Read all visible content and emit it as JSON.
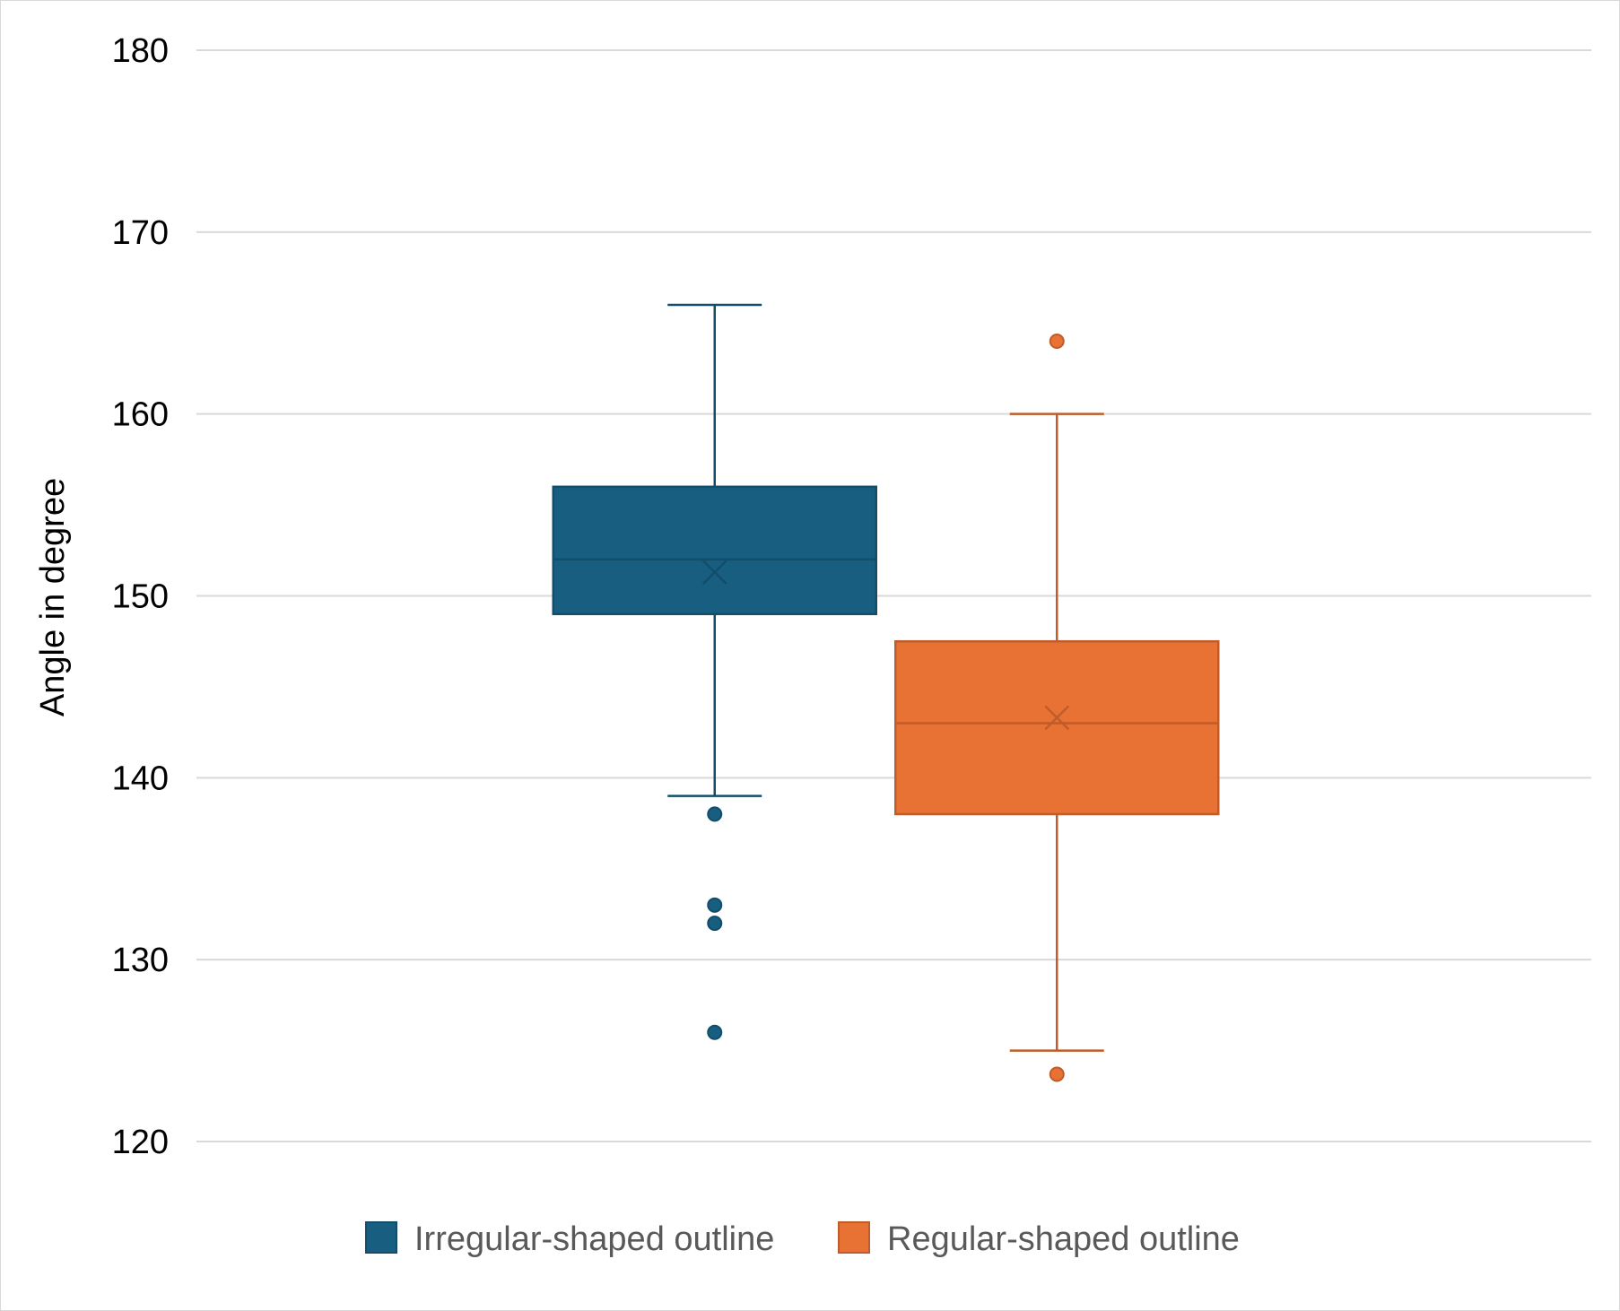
{
  "chart_data": {
    "type": "box",
    "ylabel": "Angle in degree",
    "ylim": [
      120,
      180
    ],
    "yticks": [
      120,
      130,
      140,
      150,
      160,
      170,
      180
    ],
    "grid": true,
    "legend_position": "bottom",
    "series": [
      {
        "name": "Irregular-shaped outline",
        "color": "#175e80",
        "whisker_low": 139,
        "q1": 149,
        "median": 152,
        "mean": 151.3,
        "q3": 156,
        "whisker_high": 166,
        "outliers": [
          138,
          133,
          132,
          126
        ]
      },
      {
        "name": "Regular-shaped outline",
        "color": "#e87234",
        "whisker_low": 125,
        "q1": 138,
        "median": 143,
        "mean": 143.3,
        "q3": 147.5,
        "whisker_high": 160,
        "outliers": [
          164,
          123.7
        ]
      }
    ]
  }
}
